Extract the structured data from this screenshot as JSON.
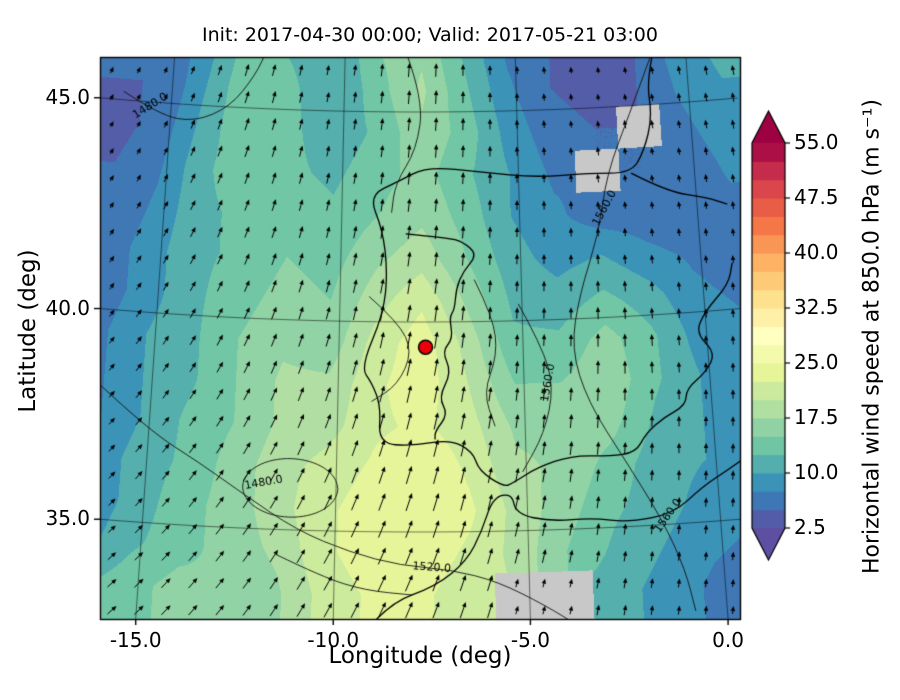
{
  "chart_data": {
    "type": "heatmap",
    "title": "Init: 2017-04-30 00:00; Valid: 2017-05-21 03:00",
    "xlabel": "Longitude (deg)",
    "ylabel": "Latitude (deg)",
    "x_ticks": [
      -15.0,
      -10.0,
      -5.0,
      0.0
    ],
    "x_tick_labels": [
      "-15.0",
      "-10.0",
      "-5.0",
      "0.0"
    ],
    "y_ticks": [
      35.0,
      40.0,
      45.0
    ],
    "y_tick_labels": [
      "35.0",
      "40.0",
      "45.0"
    ],
    "lon_range": [
      -16.5,
      1.0
    ],
    "lat_range": [
      32.9,
      46.3
    ],
    "graticule": {
      "lon_lines": [
        -15,
        -10,
        -5,
        0
      ],
      "lat_lines": [
        35,
        40,
        45
      ]
    },
    "colorbar": {
      "label": "Horizontal wind speed at 850.0 hPa (m s⁻¹)",
      "ticks": [
        2.5,
        10.0,
        17.5,
        25.0,
        32.5,
        40.0,
        47.5,
        55.0
      ],
      "tick_labels": [
        "2.5",
        "10.0",
        "17.5",
        "25.0",
        "32.5",
        "40.0",
        "47.5",
        "55.0"
      ],
      "vmin": 2.5,
      "vmax": 55.0,
      "band_step": 2.5,
      "extend": "both",
      "colormap_stops": [
        "#5e4fa2",
        "#3288bd",
        "#66c2a5",
        "#abdda4",
        "#e6f598",
        "#ffffbf",
        "#fee08b",
        "#fdae61",
        "#f46d43",
        "#d53e4f",
        "#9e0142"
      ],
      "missing_color": "#c8c8c8"
    },
    "marker": {
      "lon": -7.65,
      "lat": 39.4,
      "color": "#e8000b",
      "edge_color": "#000000"
    },
    "wind_speed_grid": {
      "units": "m s-1",
      "lons": [
        -16.5,
        -15.25,
        -14,
        -12.75,
        -11.5,
        -10.25,
        -9,
        -7.75,
        -6.5,
        -5.25,
        -4,
        -2.75,
        -1.5,
        -0.25,
        1
      ],
      "lats": [
        46.5,
        45.5,
        44.5,
        43.5,
        42.5,
        41.5,
        40.5,
        39.5,
        38.5,
        37.5,
        36.5,
        35.5,
        34.5,
        33.5
      ],
      "values": [
        [
          6,
          5,
          9,
          14,
          12,
          10,
          15,
          17,
          12,
          7,
          5,
          4,
          5,
          9,
          11
        ],
        [
          5,
          5,
          10,
          15,
          13,
          10,
          14,
          18,
          13,
          8,
          5,
          4,
          5,
          8,
          10
        ],
        [
          4,
          6,
          11,
          15,
          13,
          11,
          13,
          17,
          14,
          9,
          6,
          5,
          null,
          7,
          9
        ],
        [
          5,
          7,
          12,
          14,
          13,
          12,
          14,
          16,
          13,
          10,
          7,
          null,
          5,
          6,
          8
        ],
        [
          5,
          8,
          12,
          13,
          14,
          13,
          15,
          17,
          14,
          10,
          8,
          6,
          6,
          6,
          7
        ],
        [
          6,
          9,
          12,
          13,
          15,
          14,
          17,
          19,
          15,
          11,
          9,
          10,
          8,
          7,
          6
        ],
        [
          6,
          9,
          12,
          14,
          16,
          15,
          19,
          22,
          17,
          12,
          11,
          13,
          11,
          8,
          7
        ],
        [
          7,
          10,
          12,
          15,
          17,
          16,
          21,
          24,
          19,
          13,
          13,
          16,
          13,
          9,
          8
        ],
        [
          7,
          10,
          12,
          15,
          18,
          18,
          22,
          24,
          20,
          15,
          15,
          17,
          13,
          10,
          8
        ],
        [
          7,
          10,
          13,
          15,
          18,
          19,
          22,
          23,
          21,
          17,
          17,
          16,
          12,
          10,
          9
        ],
        [
          8,
          11,
          13,
          16,
          19,
          21,
          23,
          25,
          22,
          18,
          17,
          14,
          11,
          10,
          9
        ],
        [
          8,
          11,
          14,
          16,
          19,
          22,
          24,
          25,
          23,
          19,
          16,
          13,
          11,
          9,
          8
        ],
        [
          9,
          12,
          14,
          16,
          18,
          22,
          24,
          24,
          22,
          19,
          15,
          12,
          10,
          8,
          7
        ],
        [
          12,
          14,
          16,
          15,
          17,
          21,
          23,
          23,
          21,
          null,
          null,
          11,
          9,
          7,
          6
        ]
      ]
    },
    "wind_direction_grid": {
      "units": "deg clockwise from north (direction toward)",
      "lons": [
        -16,
        -13.5,
        -11,
        -8.5,
        -6,
        -3.5,
        -1,
        1.5
      ],
      "lats": [
        46,
        44,
        42,
        40,
        38,
        36,
        34
      ],
      "values": [
        [
          20,
          15,
          10,
          5,
          0,
          -5,
          -8,
          -5
        ],
        [
          25,
          18,
          12,
          6,
          2,
          -4,
          -8,
          -4
        ],
        [
          28,
          22,
          14,
          8,
          4,
          0,
          -4,
          -2
        ],
        [
          32,
          25,
          16,
          10,
          6,
          2,
          -2,
          0
        ],
        [
          36,
          30,
          20,
          14,
          10,
          6,
          2,
          4
        ],
        [
          40,
          34,
          26,
          18,
          14,
          10,
          6,
          8
        ],
        [
          45,
          38,
          30,
          24,
          18,
          14,
          10,
          12
        ]
      ]
    },
    "contours": [
      {
        "label": "1480.0",
        "points": [
          [
            -16.4,
            45.2
          ],
          [
            -15.3,
            44.7
          ],
          [
            -14.3,
            44.6
          ],
          [
            -13.3,
            45.0
          ],
          [
            -12.6,
            45.8
          ],
          [
            -12.3,
            46.4
          ]
        ],
        "label_at": [
          -15.6,
          44.9
        ],
        "rot": -32
      },
      {
        "label": "1480.0",
        "type": "ellipse",
        "center": [
          -11.2,
          36.0
        ],
        "rx": 1.25,
        "ry": 0.7,
        "label_at": [
          -11.9,
          36.1
        ],
        "rot": -10
      },
      {
        "label": "1520.0",
        "points": [
          [
            -16.4,
            38.2
          ],
          [
            -15.0,
            37.2
          ],
          [
            -13.6,
            36.5
          ],
          [
            -12.4,
            35.8
          ],
          [
            -11.0,
            35.0
          ],
          [
            -9.6,
            34.5
          ],
          [
            -8.3,
            34.2
          ],
          [
            -7.0,
            34.1
          ],
          [
            -5.8,
            33.8
          ],
          [
            -4.6,
            33.2
          ],
          [
            -3.8,
            32.7
          ]
        ],
        "label_at": [
          -7.5,
          34.15
        ],
        "rot": 4
      },
      {
        "label": "1560.0",
        "points": [
          [
            -0.9,
            46.4
          ],
          [
            -1.7,
            44.9
          ],
          [
            -2.5,
            43.4
          ],
          [
            -2.8,
            42.0
          ],
          [
            -3.4,
            40.6
          ],
          [
            -3.7,
            39.3
          ],
          [
            -3.3,
            38.0
          ],
          [
            -2.4,
            36.6
          ],
          [
            -1.5,
            35.1
          ],
          [
            -1.0,
            33.9
          ],
          [
            -0.8,
            32.9
          ]
        ],
        "label_at": [
          -2.6,
          42.6
        ],
        "rot": -62,
        "label2_at": [
          -1.35,
          35.2
        ],
        "rot2": -55
      },
      {
        "label": "1560.0",
        "points": [
          [
            -5.1,
            40.4
          ],
          [
            -4.5,
            39.4
          ],
          [
            -4.2,
            38.4
          ],
          [
            -4.5,
            37.3
          ],
          [
            -5.1,
            36.4
          ]
        ],
        "label_at": [
          -4.35,
          38.5
        ],
        "rot": -80
      },
      {
        "label": "",
        "points": [
          [
            -9.2,
            40.6
          ],
          [
            -8.4,
            40.0
          ],
          [
            -8.0,
            39.3
          ],
          [
            -8.4,
            38.5
          ],
          [
            -9.1,
            38.1
          ]
        ]
      },
      {
        "label": "",
        "points": [
          [
            -6.3,
            41.0
          ],
          [
            -5.8,
            40.1
          ],
          [
            -5.7,
            39.2
          ],
          [
            -6.1,
            38.3
          ],
          [
            -5.8,
            37.5
          ]
        ]
      },
      {
        "label": "",
        "points": [
          [
            -8.2,
            46.4
          ],
          [
            -7.7,
            45.3
          ],
          [
            -7.9,
            44.1
          ],
          [
            -8.5,
            43.3
          ],
          [
            -8.6,
            42.6
          ]
        ]
      },
      {
        "label": "",
        "points": [
          [
            -11.5,
            34.4
          ],
          [
            -10.3,
            33.9
          ],
          [
            -9.2,
            33.6
          ],
          [
            -8.0,
            33.5
          ]
        ]
      }
    ],
    "coastlines": [
      [
        [
          -0.9,
          46.4
        ],
        [
          -1.2,
          45.6
        ],
        [
          -1.1,
          44.7
        ],
        [
          -1.4,
          43.9
        ],
        [
          -1.8,
          43.4
        ],
        [
          -3.0,
          43.45
        ],
        [
          -4.5,
          43.4
        ],
        [
          -6.0,
          43.55
        ],
        [
          -7.6,
          43.7
        ],
        [
          -8.4,
          43.35
        ],
        [
          -9.25,
          43.0
        ],
        [
          -8.85,
          42.2
        ],
        [
          -8.7,
          41.2
        ],
        [
          -8.8,
          40.2
        ],
        [
          -9.4,
          38.9
        ],
        [
          -9.1,
          38.55
        ],
        [
          -8.85,
          38.0
        ],
        [
          -8.9,
          37.1
        ],
        [
          -8.0,
          37.05
        ],
        [
          -7.0,
          37.2
        ],
        [
          -6.4,
          36.9
        ],
        [
          -6.25,
          36.45
        ],
        [
          -5.6,
          36.05
        ],
        [
          -5.35,
          36.15
        ],
        [
          -4.7,
          36.5
        ],
        [
          -3.8,
          36.75
        ],
        [
          -2.8,
          36.7
        ],
        [
          -2.1,
          36.75
        ],
        [
          -1.8,
          37.2
        ],
        [
          -1.3,
          37.55
        ],
        [
          -0.7,
          37.8
        ],
        [
          -0.65,
          38.2
        ],
        [
          -0.1,
          38.55
        ],
        [
          0.2,
          39.0
        ],
        [
          -0.3,
          39.5
        ],
        [
          0.0,
          40.0
        ],
        [
          0.7,
          40.6
        ],
        [
          0.85,
          41.1
        ]
      ],
      [
        [
          -9.2,
          32.6
        ],
        [
          -8.6,
          33.3
        ],
        [
          -7.4,
          33.7
        ],
        [
          -6.6,
          34.3
        ],
        [
          -6.2,
          35.0
        ],
        [
          -5.9,
          35.8
        ],
        [
          -5.4,
          35.9
        ],
        [
          -5.3,
          35.4
        ],
        [
          -4.4,
          35.2
        ],
        [
          -3.3,
          35.25
        ],
        [
          -2.4,
          35.1
        ],
        [
          -1.2,
          35.25
        ],
        [
          -0.4,
          35.85
        ],
        [
          0.3,
          36.2
        ],
        [
          0.85,
          36.5
        ]
      ],
      [
        [
          -8.2,
          42.1
        ],
        [
          -7.0,
          42.0
        ],
        [
          -6.6,
          41.9
        ],
        [
          -6.2,
          41.6
        ],
        [
          -6.6,
          41.2
        ],
        [
          -6.8,
          40.8
        ],
        [
          -6.85,
          40.3
        ],
        [
          -7.0,
          40.1
        ],
        [
          -6.9,
          39.6
        ],
        [
          -7.2,
          39.3
        ],
        [
          -6.95,
          38.8
        ],
        [
          -7.3,
          38.2
        ],
        [
          -7.05,
          37.8
        ],
        [
          -7.4,
          37.4
        ],
        [
          -7.4,
          37.2
        ]
      ],
      [
        [
          -1.8,
          43.4
        ],
        [
          -0.8,
          42.9
        ],
        [
          0.3,
          42.7
        ],
        [
          0.85,
          42.5
        ]
      ]
    ]
  }
}
